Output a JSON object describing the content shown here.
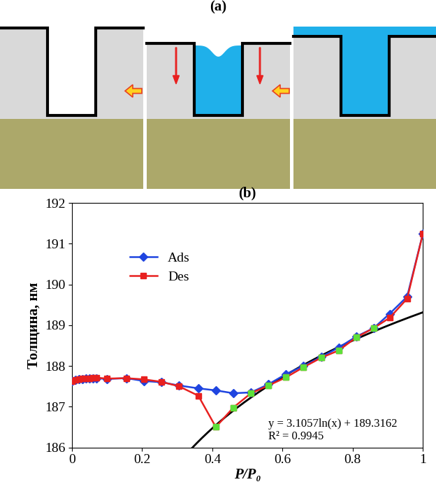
{
  "diagram": {
    "label": "(a)"
  },
  "chart_data": {
    "type": "line",
    "title": "(b)",
    "x_label": "P/P₀",
    "y_label": "Толщина, нм",
    "xlim": [
      0,
      1
    ],
    "xticks": [
      0,
      0.2,
      0.4,
      0.6,
      0.8,
      1
    ],
    "ylim": [
      186,
      192
    ],
    "yticks": [
      186,
      187,
      188,
      189,
      190,
      191,
      192
    ],
    "grid": false,
    "legend": "upper left",
    "series": [
      {
        "name": "Ads",
        "color": "#1f45e0",
        "marker": "diamond",
        "line_style": "solid",
        "x": [
          0,
          0.01,
          0.02,
          0.03,
          0.04,
          0.05,
          0.06,
          0.07,
          0.1,
          0.155,
          0.205,
          0.255,
          0.305,
          0.36,
          0.41,
          0.46,
          0.51,
          0.56,
          0.61,
          0.66,
          0.71,
          0.76,
          0.81,
          0.86,
          0.905,
          0.955,
          1.0
        ],
        "values": [
          187.63,
          187.65,
          187.67,
          187.68,
          187.69,
          187.7,
          187.7,
          187.7,
          187.68,
          187.7,
          187.63,
          187.6,
          187.52,
          187.45,
          187.4,
          187.33,
          187.35,
          187.55,
          187.8,
          188.0,
          188.22,
          188.45,
          188.72,
          188.93,
          189.28,
          189.7,
          191.25
        ]
      },
      {
        "name": "Des",
        "color": "#e8201f",
        "marker": "square",
        "line_style": "solid",
        "x": [
          0,
          0.01,
          0.02,
          0.03,
          0.04,
          0.05,
          0.06,
          0.07,
          0.1,
          0.155,
          0.205,
          0.255,
          0.305,
          0.36,
          0.41,
          0.46,
          0.51,
          0.56,
          0.61,
          0.66,
          0.71,
          0.76,
          0.81,
          0.86,
          0.905,
          0.955,
          1.0
        ],
        "values": [
          187.63,
          187.66,
          187.68,
          187.69,
          187.7,
          187.7,
          187.71,
          187.71,
          187.69,
          187.7,
          187.67,
          187.61,
          187.5,
          187.27,
          186.5,
          186.98,
          187.33,
          187.52,
          187.72,
          187.97,
          188.2,
          188.38,
          188.7,
          188.93,
          189.18,
          189.65,
          191.25
        ]
      },
      {
        "color": "#5ee03a",
        "marker": "square",
        "line_style": "none",
        "x": [
          0.41,
          0.46,
          0.51,
          0.56,
          0.61,
          0.66,
          0.71,
          0.76,
          0.81,
          0.86
        ],
        "values": [
          186.5,
          186.98,
          187.33,
          187.52,
          187.72,
          187.97,
          188.2,
          188.38,
          188.7,
          188.93
        ]
      }
    ],
    "trendline": {
      "type": "log",
      "a": 3.1057,
      "b": 189.3162,
      "x": [
        0.3,
        1.0
      ],
      "color": "#000000",
      "annotations": [
        "y = 3.1057ln(x) + 189.3162",
        "R² = 0.9945"
      ]
    }
  }
}
